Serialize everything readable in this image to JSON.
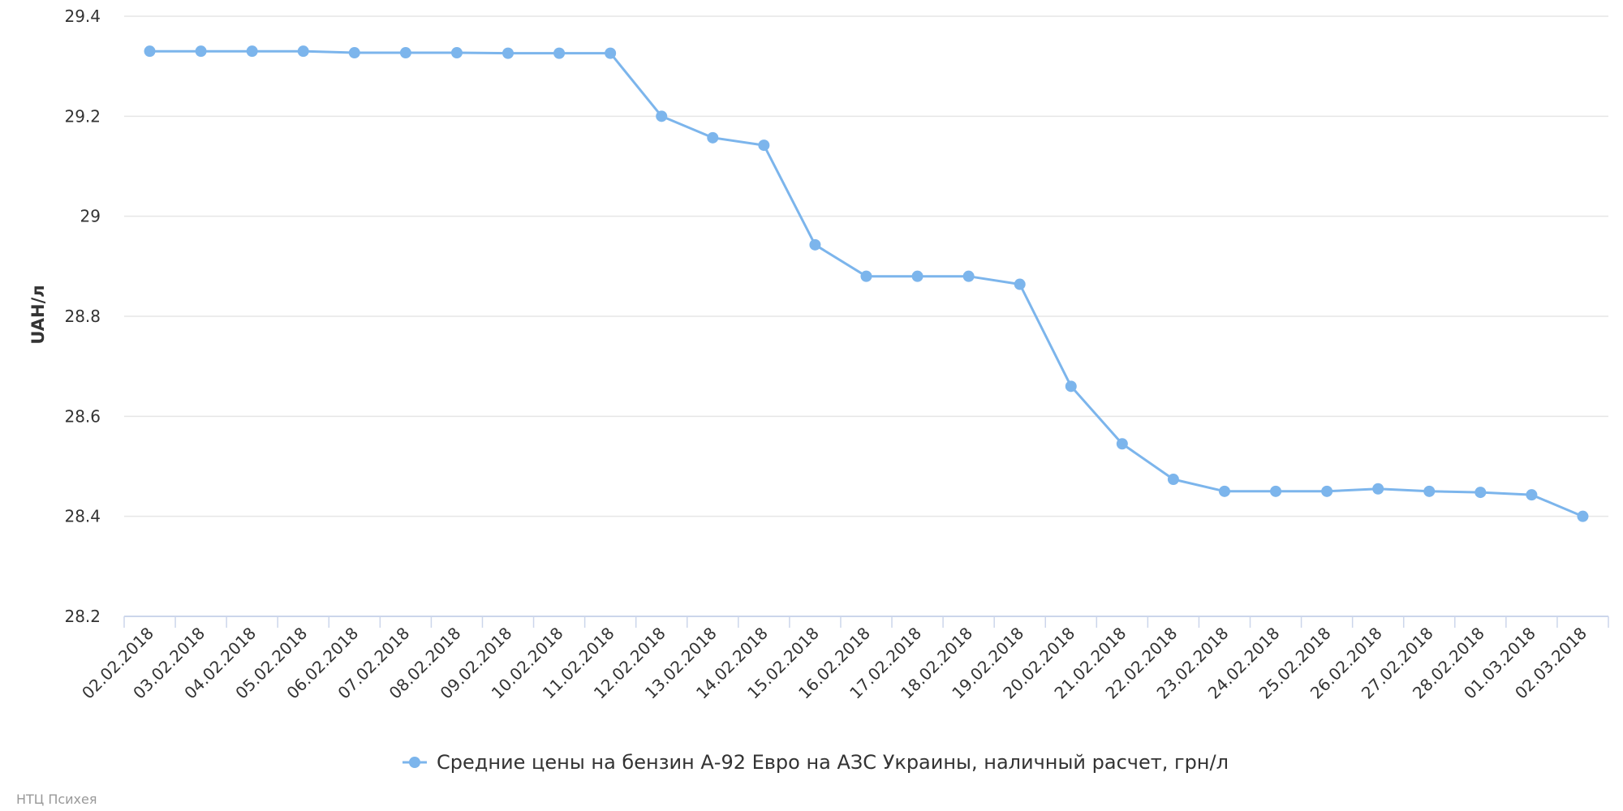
{
  "chart_data": {
    "type": "line",
    "title": "",
    "xlabel": "",
    "ylabel": "UAH/л",
    "ylim": [
      28.2,
      29.4
    ],
    "yticks": [
      "28.2",
      "28.4",
      "28.6",
      "28.8",
      "29",
      "29.2",
      "29.4"
    ],
    "grid": true,
    "legend_position": "bottom-center",
    "categories": [
      "02.02.2018",
      "03.02.2018",
      "04.02.2018",
      "05.02.2018",
      "06.02.2018",
      "07.02.2018",
      "08.02.2018",
      "09.02.2018",
      "10.02.2018",
      "11.02.2018",
      "12.02.2018",
      "13.02.2018",
      "14.02.2018",
      "15.02.2018",
      "16.02.2018",
      "17.02.2018",
      "18.02.2018",
      "19.02.2018",
      "20.02.2018",
      "21.02.2018",
      "22.02.2018",
      "23.02.2018",
      "24.02.2018",
      "25.02.2018",
      "26.02.2018",
      "27.02.2018",
      "28.02.2018",
      "01.03.2018",
      "02.03.2018"
    ],
    "series": [
      {
        "name": "Средние цены на бензин А-92 Евро на АЗС Украины, наличный расчет, грн/л",
        "color": "#7cb5ec",
        "values": [
          29.33,
          29.33,
          29.33,
          29.33,
          29.327,
          29.327,
          29.327,
          29.326,
          29.326,
          29.326,
          29.2,
          29.157,
          29.142,
          28.943,
          28.88,
          28.88,
          28.88,
          28.864,
          28.66,
          28.545,
          28.474,
          28.45,
          28.45,
          28.45,
          28.455,
          28.45,
          28.448,
          28.443,
          28.4
        ]
      }
    ]
  },
  "credit": "НТЦ Психея"
}
